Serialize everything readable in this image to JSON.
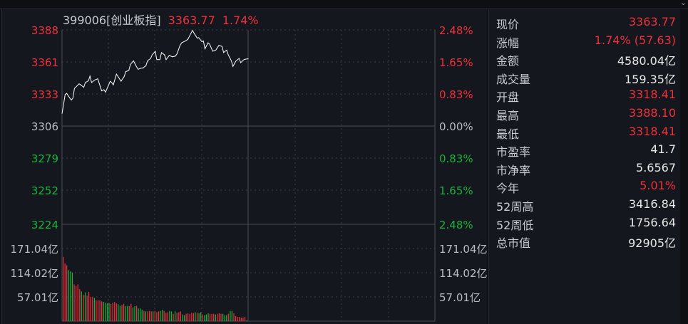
{
  "header": {
    "code_name": "399006[创业板指]",
    "price": "3363.77",
    "change_pct": "1.74%"
  },
  "colors": {
    "up": "#f0303a",
    "down": "#19b33a",
    "line": "#ffffff",
    "neutral": "#b8bcc4"
  },
  "chart_data": {
    "type": "line",
    "price_axis_left": [
      "3388",
      "3361",
      "3333",
      "3306",
      "3279",
      "3252",
      "3224"
    ],
    "price_axis_right": [
      "2.48%",
      "1.65%",
      "0.83%",
      "0.00%",
      "0.83%",
      "1.65%",
      "2.48%"
    ],
    "ylim": [
      3224,
      3388
    ],
    "prev_close": 3306,
    "x_minutes_range": [
      0,
      240
    ],
    "price_points": [
      [
        0,
        3317.3
      ],
      [
        1,
        3325.4
      ],
      [
        2,
        3333.5
      ],
      [
        3,
        3334.5
      ],
      [
        5,
        3330.5
      ],
      [
        6,
        3328.9
      ],
      [
        7,
        3330.5
      ],
      [
        8,
        3338.6
      ],
      [
        11,
        3342.6
      ],
      [
        12,
        3341.6
      ],
      [
        14,
        3339.6
      ],
      [
        15,
        3343.6
      ],
      [
        17,
        3345.1
      ],
      [
        18,
        3349.1
      ],
      [
        19,
        3343.6
      ],
      [
        21,
        3345.7
      ],
      [
        23,
        3346.7
      ],
      [
        25,
        3338.6
      ],
      [
        25.5,
        3336.6
      ],
      [
        27,
        3337.6
      ],
      [
        28,
        3335.5
      ],
      [
        31,
        3344.7
      ],
      [
        32,
        3343.6
      ],
      [
        33,
        3341.6
      ],
      [
        35,
        3350.7
      ],
      [
        37,
        3346.7
      ],
      [
        38,
        3344.7
      ],
      [
        40,
        3348.7
      ],
      [
        41,
        3352.8
      ],
      [
        43,
        3353.8
      ],
      [
        44,
        3358.8
      ],
      [
        46,
        3361.9
      ],
      [
        48,
        3356.8
      ],
      [
        49,
        3354.8
      ],
      [
        51,
        3355.8
      ],
      [
        52,
        3355.8
      ],
      [
        54,
        3357.8
      ],
      [
        55,
        3361.9
      ],
      [
        57,
        3363.9
      ],
      [
        58,
        3366.9
      ],
      [
        60,
        3370.0
      ],
      [
        61,
        3362.9
      ],
      [
        63,
        3362.9
      ],
      [
        64,
        3368.9
      ],
      [
        66,
        3366.9
      ],
      [
        67,
        3362.9
      ],
      [
        69,
        3366.5
      ],
      [
        71,
        3365.3
      ],
      [
        73,
        3365.9
      ],
      [
        74,
        3367.9
      ],
      [
        76,
        3375.0
      ],
      [
        77,
        3377.1
      ],
      [
        80,
        3379.1
      ],
      [
        81,
        3380.1
      ],
      [
        83,
        3385.2
      ],
      [
        84,
        3387.6
      ],
      [
        85,
        3385.2
      ],
      [
        87,
        3381.1
      ],
      [
        88,
        3381.5
      ],
      [
        90,
        3378.1
      ],
      [
        91,
        3378.7
      ],
      [
        92,
        3372.0
      ],
      [
        94,
        3377.1
      ],
      [
        95,
        3376.0
      ],
      [
        97,
        3370.0
      ],
      [
        99,
        3371.0
      ],
      [
        101,
        3375.0
      ],
      [
        103,
        3374.0
      ],
      [
        104,
        3368.9
      ],
      [
        106,
        3371.0
      ],
      [
        107,
        3366.9
      ],
      [
        109,
        3361.9
      ],
      [
        110,
        3357.2
      ],
      [
        112,
        3361.9
      ],
      [
        114,
        3363.9
      ],
      [
        115,
        3360.4
      ],
      [
        117,
        3362.9
      ],
      [
        118,
        3363.3
      ],
      [
        120,
        3363.7
      ]
    ],
    "volume_axis": [
      "171.04亿",
      "114.02亿",
      "57.01亿"
    ],
    "volume_max": 171.04,
    "volume_units": "亿",
    "volume": [
      151.5,
      135.8,
      131.4,
      120.2,
      117.4,
      114.6,
      86.6,
      82.7,
      86.6,
      75.5,
      69.9,
      62,
      67.6,
      60.4,
      68.8,
      57.6,
      56.5,
      54.8,
      49.2,
      49.2,
      49.2,
      46.4,
      45.3,
      43.6,
      41.9,
      43.6,
      40.8,
      43.6,
      45.3,
      41.9,
      39.7,
      36.3,
      38,
      40.8,
      35.2,
      36.3,
      35.2,
      40.8,
      32.4,
      35.2,
      36.3,
      29.6,
      29.6,
      26.8,
      24,
      22.9,
      22.9,
      24,
      22.9,
      22.9,
      24,
      21.2,
      22.9,
      24,
      26.8,
      24,
      19.6,
      21.2,
      24,
      22.9,
      17.3,
      22.9,
      19.6,
      21.2,
      22.9,
      15.7,
      14,
      17.3,
      18.4,
      17.3,
      19.6,
      18.4,
      21.2,
      19.6,
      18.4,
      21.2,
      15.7,
      14,
      15.7,
      18.4,
      17.3,
      17.3,
      17.3,
      15.7,
      17.3,
      18.4,
      17.3,
      17.3,
      14,
      14,
      17.3,
      24,
      24,
      18.4,
      11.7,
      10.1,
      10.1,
      8.4,
      8.4,
      10.1,
      1.7
    ],
    "volume_dir": "rrrgggrrrrgrgrrrrgrrrrggggrrrrggrrggrrggrgggrgrrrgrrrggrrrggrgrrrggrrrrrgrggrgggrrrgrrrgggrggrrrrrrrg"
  },
  "info": [
    {
      "label": "现价",
      "value": "3363.77",
      "color": "red"
    },
    {
      "label": "涨幅",
      "value": "1.74% (57.63)",
      "color": "red"
    },
    {
      "label": "金额",
      "value": "4580.04亿",
      "color": "white"
    },
    {
      "label": "成交量",
      "value": "159.35亿",
      "color": "white"
    },
    {
      "label": "开盘",
      "value": "3318.41",
      "color": "red"
    },
    {
      "label": "最高",
      "value": "3388.10",
      "color": "red"
    },
    {
      "label": "最低",
      "value": "3318.41",
      "color": "red"
    },
    {
      "label": "市盈率",
      "value": "41.7",
      "color": "white"
    },
    {
      "label": "市净率",
      "value": "5.6567",
      "color": "white"
    },
    {
      "label": "今年",
      "value": "5.01%",
      "color": "red"
    },
    {
      "label": "52周高",
      "value": "3416.84",
      "color": "white"
    },
    {
      "label": "52周低",
      "value": "1756.64",
      "color": "white"
    },
    {
      "label": "总市值",
      "value": "92905亿",
      "color": "white"
    }
  ],
  "icons": {
    "collapse": "double-chevron-down-icon"
  }
}
